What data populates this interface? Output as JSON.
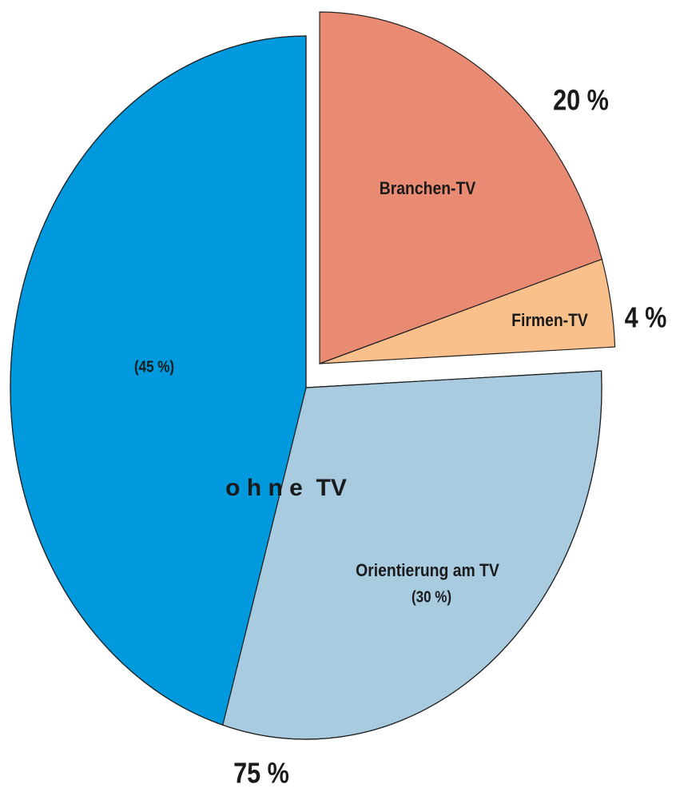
{
  "chart_data": {
    "type": "pie",
    "categories": [
      "Branchen-TV",
      "Firmen-TV",
      "Orientierung am TV",
      null
    ],
    "values": [
      20,
      4,
      30,
      45
    ],
    "value_labels": [
      "20 %",
      "4 %",
      "(30 %)",
      "(45 %)"
    ],
    "colors": [
      "#e98b72",
      "#f9c08c",
      "#a8cbe0",
      "#0099dd"
    ],
    "group": {
      "label": "o h n e  TV",
      "value": 75,
      "value_label": "75 %"
    }
  }
}
